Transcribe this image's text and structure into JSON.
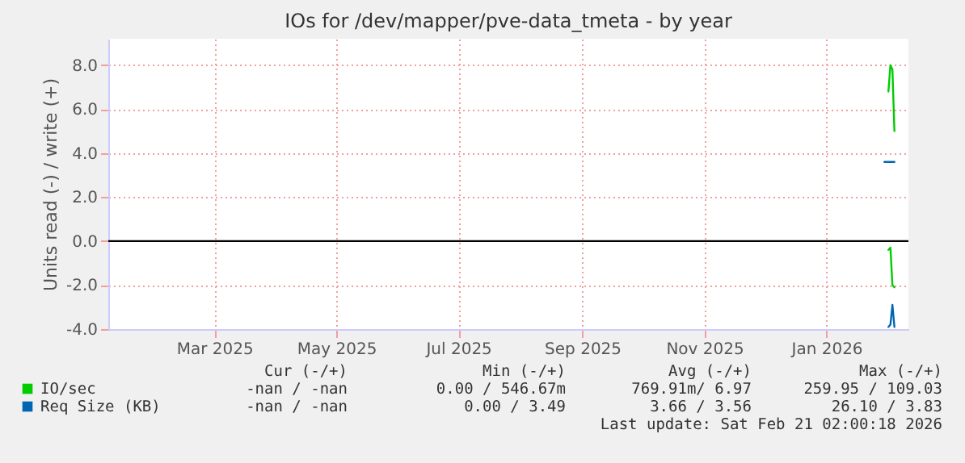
{
  "chart_data": {
    "type": "line",
    "title": "IOs for /dev/mapper/pve-data_tmeta - by year",
    "ylabel": "Units read (-) / write (+)",
    "x": [
      "2026-02-01",
      "2026-02-02",
      "2026-02-03",
      "2026-02-04"
    ],
    "series": [
      {
        "name": "IO/sec",
        "color": "#00cc00",
        "values": [
          6.8,
          8.0,
          7.8,
          5.0
        ]
      },
      {
        "color": "#00cc00",
        "values": [
          -0.4,
          -0.3,
          -2.0,
          -2.1
        ]
      },
      {
        "name": "Req Size (KB)",
        "color": "#0066b3",
        "x": [
          "2026-01-30",
          "2026-02-04"
        ],
        "values": [
          3.6,
          3.6
        ]
      },
      {
        "color": "#0066b3",
        "values": [
          -3.9,
          -3.8,
          -2.9,
          -3.9
        ]
      }
    ],
    "xlim": [
      "2025-01-07",
      "2026-02-11"
    ],
    "xticks": [
      {
        "value": "2025-03-01",
        "label": "Mar 2025"
      },
      {
        "value": "2025-05-01",
        "label": "May 2025"
      },
      {
        "value": "2025-07-01",
        "label": "Jul 2025"
      },
      {
        "value": "2025-09-01",
        "label": "Sep 2025"
      },
      {
        "value": "2025-11-01",
        "label": "Nov 2025"
      },
      {
        "value": "2026-01-01",
        "label": "Jan 2026"
      }
    ],
    "ylim": [
      -4,
      9.2
    ],
    "yticks": [
      {
        "value": -4,
        "label": "-4.0"
      },
      {
        "value": -2,
        "label": "-2.0"
      },
      {
        "value": 0,
        "label": "0.0"
      },
      {
        "value": 2,
        "label": "2.0"
      },
      {
        "value": 4,
        "label": "4.0"
      },
      {
        "value": 6,
        "label": "6.0"
      },
      {
        "value": 8,
        "label": "8.0"
      }
    ],
    "ref_lines": [
      {
        "axis": "y",
        "value": 0,
        "color": "#000000"
      }
    ],
    "grid": true,
    "legend": "bottom",
    "annotations": [
      "Cur (-/+)",
      "Min (-/+)",
      "Avg (-/+)",
      "Max (-/+)",
      "-nan /   -nan",
      "0.00 / 546.67m",
      "769.91m/   6.97",
      "259.95 / 109.03",
      "-nan /   -nan",
      "0.00 /   3.49",
      "3.66 /   3.56",
      "26.10 /   3.83",
      "Last update: Sat Feb 21 02:00:18 2026"
    ]
  }
}
